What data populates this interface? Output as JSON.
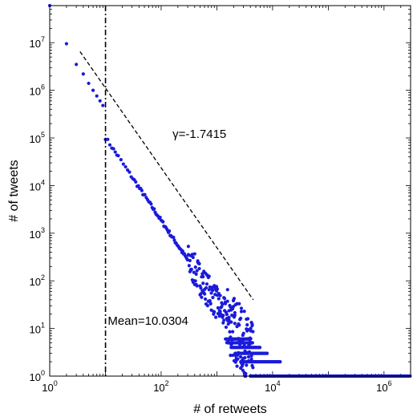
{
  "chart_data": {
    "type": "scatter",
    "title": "",
    "xlabel": "# of retweets",
    "ylabel": "# of tweets",
    "xscale": "log",
    "yscale": "log",
    "xlim": [
      1,
      3000000
    ],
    "ylim": [
      1,
      60000000
    ],
    "x_ticks": [
      {
        "base": "10",
        "exp": "0",
        "value": 1
      },
      {
        "base": "10",
        "exp": "2",
        "value": 100
      },
      {
        "base": "10",
        "exp": "4",
        "value": 10000
      },
      {
        "base": "10",
        "exp": "6",
        "value": 1000000
      }
    ],
    "y_ticks": [
      {
        "base": "10",
        "exp": "0",
        "value": 1
      },
      {
        "base": "10",
        "exp": "1",
        "value": 10
      },
      {
        "base": "10",
        "exp": "2",
        "value": 100
      },
      {
        "base": "10",
        "exp": "3",
        "value": 1000
      },
      {
        "base": "10",
        "exp": "4",
        "value": 10000
      },
      {
        "base": "10",
        "exp": "5",
        "value": 100000
      },
      {
        "base": "10",
        "exp": "6",
        "value": 1000000
      },
      {
        "base": "10",
        "exp": "7",
        "value": 10000000
      }
    ],
    "grid": false,
    "series": [
      {
        "color": "#1a1adb",
        "points": [
          [
            1,
            60000000
          ],
          [
            2,
            9500000
          ],
          [
            3,
            3500000
          ],
          [
            4,
            2200000
          ],
          [
            5,
            1400000
          ],
          [
            6,
            1000000
          ],
          [
            7,
            760000
          ],
          [
            8,
            600000
          ],
          [
            9,
            480000
          ]
        ],
        "powerlaw_fit": {
          "slope": -1.7415,
          "intercept_log10": 6.75,
          "x_min": 10,
          "x_max": 4500
        },
        "tail_levels": [
          1,
          2,
          3,
          4,
          5,
          6
        ],
        "tail_x_max": [
          3000000,
          14000,
          8000,
          6000,
          4500,
          4000
        ]
      }
    ],
    "reference_lines": [
      {
        "type": "vertical",
        "x": 10.0304,
        "style": "dash-dot",
        "color": "#000000",
        "label": "Mean=10.0304"
      },
      {
        "type": "fit",
        "style": "dashed",
        "color": "#000000",
        "x_from": 3.5,
        "y_from": 6500000,
        "x_to": 4500,
        "y_to": 40,
        "label": "γ=-1.7415"
      }
    ],
    "annotations": [
      {
        "text": "γ=-1.7415",
        "x": 160,
        "y": 100000
      },
      {
        "text": "Mean=10.0304",
        "x": 11,
        "y": 12
      }
    ]
  }
}
